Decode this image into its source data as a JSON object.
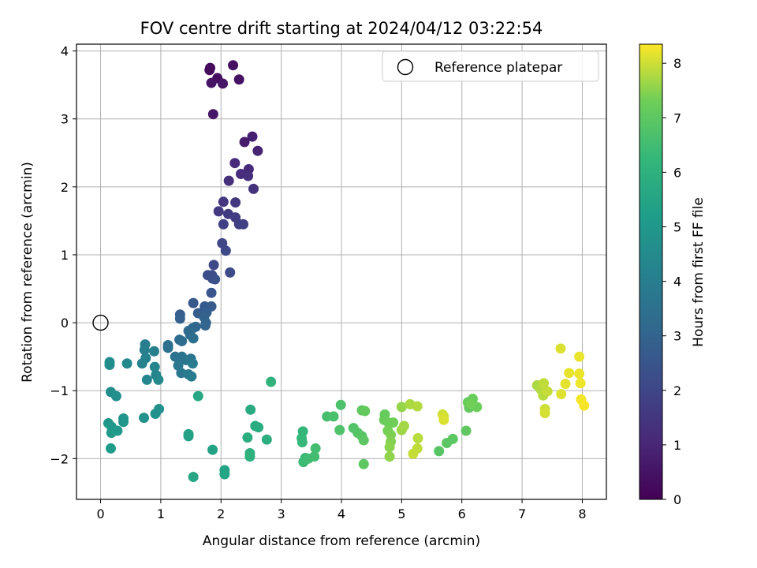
{
  "chart_data": {
    "type": "scatter",
    "title": "FOV centre drift starting at 2024/04/12 03:22:54",
    "xlabel": "Angular distance from reference (arcmin)",
    "ylabel": "Rotation from reference (arcmin)",
    "xlim": [
      -0.4,
      8.4
    ],
    "ylim": [
      -2.6,
      4.1
    ],
    "xticks": [
      0,
      1,
      2,
      3,
      4,
      5,
      6,
      7,
      8
    ],
    "xtick_labels": [
      "0",
      "1",
      "2",
      "3",
      "4",
      "5",
      "6",
      "7",
      "8"
    ],
    "yticks": [
      -2,
      -1,
      0,
      1,
      2,
      3,
      4
    ],
    "ytick_labels": [
      "−2",
      "−1",
      "0",
      "1",
      "2",
      "3",
      "4"
    ],
    "grid": true,
    "legend": {
      "position": "top-right",
      "entries": [
        {
          "label": "Reference platepar",
          "marker": "open-circle",
          "color": "#000000"
        }
      ]
    },
    "reference_point": {
      "x": 0,
      "y": 0
    },
    "colorbar": {
      "label": "Hours from first FF file",
      "colormap": "viridis",
      "range": [
        0,
        8.35
      ],
      "ticks": [
        0,
        1,
        2,
        3,
        4,
        5,
        6,
        7,
        8
      ],
      "tick_labels": [
        "0",
        "1",
        "2",
        "3",
        "4",
        "5",
        "6",
        "7",
        "8"
      ]
    },
    "points": [
      [
        1.82,
        3.75,
        0.25
      ],
      [
        1.81,
        3.72,
        0.3
      ],
      [
        1.94,
        3.6,
        0.35
      ],
      [
        2.2,
        3.79,
        0.4
      ],
      [
        2.3,
        3.58,
        0.45
      ],
      [
        1.84,
        3.53,
        0.5
      ],
      [
        2.03,
        3.52,
        0.55
      ],
      [
        1.87,
        3.07,
        0.6
      ],
      [
        2.39,
        2.66,
        0.7
      ],
      [
        2.52,
        2.74,
        0.8
      ],
      [
        2.61,
        2.53,
        0.9
      ],
      [
        2.23,
        2.35,
        1.1
      ],
      [
        2.46,
        2.26,
        1.15
      ],
      [
        2.33,
        2.19,
        1.2
      ],
      [
        2.45,
        2.16,
        1.25
      ],
      [
        2.13,
        2.09,
        1.3
      ],
      [
        2.54,
        1.97,
        1.35
      ],
      [
        2.04,
        1.78,
        1.5
      ],
      [
        2.24,
        1.77,
        1.55
      ],
      [
        1.96,
        1.64,
        1.6
      ],
      [
        2.12,
        1.6,
        1.65
      ],
      [
        2.24,
        1.55,
        1.7
      ],
      [
        2.3,
        1.45,
        1.75
      ],
      [
        2.37,
        1.45,
        1.8
      ],
      [
        2.04,
        1.45,
        1.85
      ],
      [
        2.02,
        1.17,
        2.0
      ],
      [
        2.08,
        1.06,
        2.05
      ],
      [
        1.88,
        0.85,
        2.1
      ],
      [
        2.15,
        0.74,
        2.15
      ],
      [
        1.85,
        0.7,
        2.2
      ],
      [
        1.78,
        0.7,
        2.25
      ],
      [
        1.86,
        0.65,
        2.3
      ],
      [
        1.9,
        0.64,
        2.35
      ],
      [
        1.84,
        0.44,
        2.5
      ],
      [
        1.54,
        0.29,
        2.6
      ],
      [
        1.73,
        0.24,
        2.65
      ],
      [
        1.84,
        0.24,
        2.7
      ],
      [
        1.32,
        0.12,
        2.75
      ],
      [
        1.62,
        0.14,
        2.8
      ],
      [
        1.76,
        0.15,
        2.85
      ],
      [
        1.32,
        0.06,
        2.9
      ],
      [
        1.72,
        0.08,
        2.95
      ],
      [
        1.75,
        0.0,
        3.0
      ],
      [
        1.74,
        -0.04,
        3.05
      ],
      [
        1.58,
        -0.06,
        3.1
      ],
      [
        1.53,
        -0.08,
        3.15
      ],
      [
        1.46,
        -0.12,
        3.2
      ],
      [
        1.49,
        -0.18,
        3.25
      ],
      [
        1.31,
        -0.25,
        3.3
      ],
      [
        1.35,
        -0.27,
        3.35
      ],
      [
        1.54,
        -0.23,
        3.4
      ],
      [
        1.12,
        -0.33,
        3.45
      ],
      [
        1.12,
        -0.37,
        3.5
      ],
      [
        1.24,
        -0.5,
        3.55
      ],
      [
        1.35,
        -0.5,
        3.6
      ],
      [
        1.42,
        -0.55,
        3.65
      ],
      [
        1.5,
        -0.53,
        3.7
      ],
      [
        1.34,
        -0.74,
        3.75
      ],
      [
        1.29,
        -0.63,
        3.8
      ],
      [
        1.46,
        -0.76,
        3.85
      ],
      [
        1.51,
        -0.79,
        3.9
      ],
      [
        1.53,
        -0.6,
        3.95
      ],
      [
        0.74,
        -0.32,
        4.0
      ],
      [
        0.73,
        -0.4,
        4.05
      ],
      [
        0.89,
        -0.42,
        4.1
      ],
      [
        0.75,
        -0.52,
        4.15
      ],
      [
        0.69,
        -0.6,
        4.2
      ],
      [
        0.9,
        -0.65,
        4.25
      ],
      [
        0.92,
        -0.77,
        4.3
      ],
      [
        0.77,
        -0.84,
        4.35
      ],
      [
        0.96,
        -0.84,
        4.4
      ],
      [
        0.44,
        -0.6,
        4.45
      ],
      [
        0.15,
        -0.58,
        4.5
      ],
      [
        0.15,
        -0.62,
        4.55
      ],
      [
        0.17,
        -1.02,
        4.6
      ],
      [
        0.26,
        -1.08,
        4.65
      ],
      [
        0.97,
        -1.27,
        4.7
      ],
      [
        0.91,
        -1.34,
        4.75
      ],
      [
        0.72,
        -1.4,
        4.8
      ],
      [
        0.38,
        -1.41,
        4.85
      ],
      [
        0.38,
        -1.46,
        4.9
      ],
      [
        0.13,
        -1.48,
        4.95
      ],
      [
        0.18,
        -1.53,
        5.0
      ],
      [
        0.28,
        -1.59,
        5.05
      ],
      [
        0.18,
        -1.62,
        5.1
      ],
      [
        0.17,
        -1.85,
        5.15
      ],
      [
        1.46,
        -1.67,
        5.3
      ],
      [
        1.46,
        -1.64,
        5.35
      ],
      [
        1.86,
        -1.87,
        5.4
      ],
      [
        2.06,
        -2.17,
        5.45
      ],
      [
        2.06,
        -2.23,
        5.5
      ],
      [
        1.54,
        -2.27,
        5.55
      ],
      [
        1.62,
        -1.08,
        5.6
      ],
      [
        2.49,
        -1.28,
        5.7
      ],
      [
        2.57,
        -1.52,
        5.75
      ],
      [
        2.62,
        -1.54,
        5.8
      ],
      [
        2.44,
        -1.69,
        5.85
      ],
      [
        2.76,
        -1.72,
        5.9
      ],
      [
        2.48,
        -1.92,
        5.95
      ],
      [
        2.48,
        -1.97,
        6.0
      ],
      [
        2.83,
        -0.87,
        6.05
      ],
      [
        3.36,
        -1.6,
        6.2
      ],
      [
        3.34,
        -1.7,
        6.25
      ],
      [
        3.35,
        -1.76,
        6.3
      ],
      [
        3.4,
        -1.99,
        6.35
      ],
      [
        3.37,
        -2.05,
        6.4
      ],
      [
        3.45,
        -2.0,
        6.45
      ],
      [
        3.55,
        -1.97,
        6.5
      ],
      [
        3.57,
        -1.85,
        6.55
      ],
      [
        3.76,
        -1.38,
        6.6
      ],
      [
        3.87,
        -1.38,
        6.65
      ],
      [
        3.99,
        -1.21,
        6.7
      ],
      [
        3.97,
        -1.58,
        6.75
      ],
      [
        4.2,
        -1.55,
        6.8
      ],
      [
        4.27,
        -1.62,
        6.85
      ],
      [
        4.34,
        -1.67,
        6.9
      ],
      [
        4.37,
        -1.73,
        6.95
      ],
      [
        4.37,
        -2.08,
        7.0
      ],
      [
        4.34,
        -1.29,
        7.05
      ],
      [
        4.39,
        -1.3,
        7.1
      ],
      [
        4.72,
        -1.35,
        7.15
      ],
      [
        4.71,
        -1.43,
        7.2
      ],
      [
        4.78,
        -1.47,
        7.25
      ],
      [
        4.86,
        -1.47,
        7.3
      ],
      [
        4.77,
        -1.59,
        7.35
      ],
      [
        4.82,
        -1.65,
        7.4
      ],
      [
        4.82,
        -1.75,
        7.45
      ],
      [
        4.8,
        -1.83,
        7.5
      ],
      [
        4.8,
        -1.97,
        7.55
      ],
      [
        5.0,
        -1.24,
        7.6
      ],
      [
        5.0,
        -1.58,
        7.65
      ],
      [
        5.04,
        -1.52,
        7.7
      ],
      [
        5.14,
        -1.2,
        7.75
      ],
      [
        5.26,
        -1.23,
        7.8
      ],
      [
        5.27,
        -1.7,
        7.85
      ],
      [
        5.26,
        -1.85,
        7.9
      ],
      [
        5.19,
        -1.93,
        7.95
      ],
      [
        5.68,
        -1.35,
        8.0
      ],
      [
        5.7,
        -1.38,
        8.05
      ],
      [
        5.7,
        -1.43,
        8.1
      ]
    ],
    "points_late": [
      [
        5.62,
        -1.89,
        6.9
      ],
      [
        5.75,
        -1.77,
        6.95
      ],
      [
        5.85,
        -1.71,
        7.0
      ],
      [
        6.07,
        -1.59,
        7.05
      ],
      [
        6.12,
        -1.25,
        7.1
      ],
      [
        6.1,
        -1.17,
        7.15
      ],
      [
        6.18,
        -1.12,
        7.2
      ],
      [
        6.25,
        -1.24,
        7.25
      ],
      [
        6.15,
        -1.2,
        7.3
      ],
      [
        7.25,
        -0.92,
        7.75
      ],
      [
        7.31,
        -0.98,
        7.8
      ],
      [
        7.35,
        -1.07,
        7.85
      ],
      [
        7.36,
        -0.89,
        7.9
      ],
      [
        7.42,
        -1.01,
        7.95
      ],
      [
        7.38,
        -1.27,
        8.0
      ],
      [
        7.38,
        -1.33,
        8.05
      ],
      [
        7.64,
        -0.38,
        8.1
      ],
      [
        7.65,
        -1.05,
        8.12
      ],
      [
        7.72,
        -0.9,
        8.15
      ],
      [
        7.78,
        -0.74,
        8.18
      ],
      [
        7.95,
        -0.5,
        8.2
      ],
      [
        7.95,
        -0.75,
        8.22
      ],
      [
        7.97,
        -0.89,
        8.25
      ],
      [
        7.98,
        -1.13,
        8.28
      ],
      [
        8.03,
        -1.22,
        8.3
      ]
    ]
  }
}
